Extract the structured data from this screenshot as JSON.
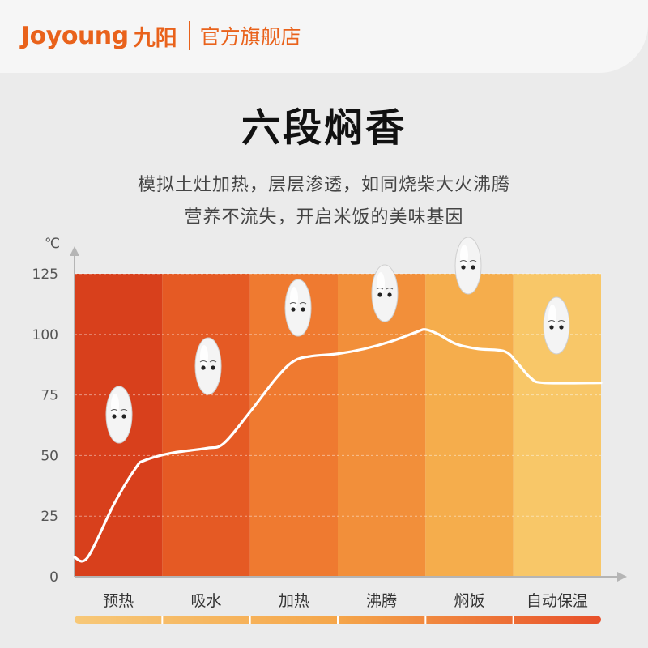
{
  "header": {
    "brand_logo": "Joyoung",
    "brand_cn": "九阳",
    "store": "官方旗舰店",
    "brand_color": "#e9621b"
  },
  "headline": "六段焖香",
  "subtitle": {
    "line1": "模拟土灶加热，层层渗透，如同烧柴大火沸腾",
    "line2": "营养不流失，开启米饭的美味基因"
  },
  "chart_data": {
    "type": "area",
    "yunit": "℃",
    "ylim": [
      0,
      125
    ],
    "yticks": [
      0,
      25,
      50,
      75,
      100,
      125
    ],
    "categories": [
      "预热",
      "吸水",
      "加热",
      "沸腾",
      "焖饭",
      "自动保温"
    ],
    "band_colors": [
      "#d8401c",
      "#e55a24",
      "#ef7a30",
      "#f28f3a",
      "#f5ad4c",
      "#f8c768"
    ],
    "series": [
      {
        "values": [
          [
            0.0,
            8
          ],
          [
            0.15,
            8
          ],
          [
            0.45,
            30
          ],
          [
            0.7,
            45
          ],
          [
            0.8,
            48
          ],
          [
            1.1,
            51
          ],
          [
            1.5,
            53
          ],
          [
            1.7,
            55
          ],
          [
            2.0,
            68
          ],
          [
            2.3,
            82
          ],
          [
            2.5,
            89
          ],
          [
            2.7,
            91
          ],
          [
            3.0,
            92
          ],
          [
            3.3,
            94
          ],
          [
            3.6,
            97
          ],
          [
            3.9,
            101
          ],
          [
            4.0,
            102
          ],
          [
            4.15,
            100
          ],
          [
            4.35,
            96
          ],
          [
            4.6,
            94
          ],
          [
            4.9,
            93
          ],
          [
            5.05,
            88
          ],
          [
            5.2,
            82
          ],
          [
            5.35,
            80
          ],
          [
            6.0,
            80
          ]
        ]
      }
    ],
    "grid": true,
    "legend": "none"
  }
}
